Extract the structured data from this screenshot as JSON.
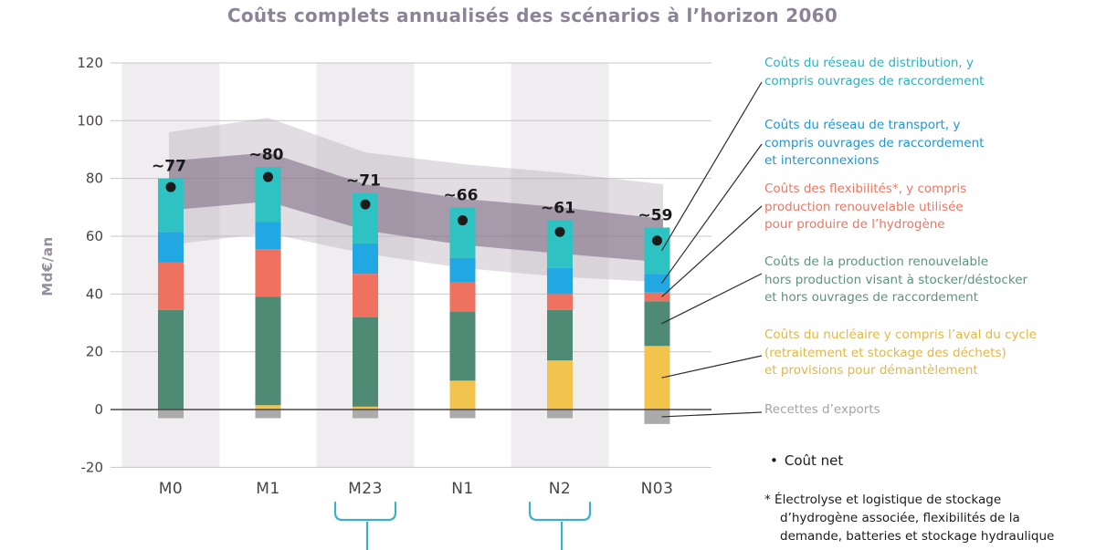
{
  "title": "Coûts complets annualisés des scénarios à l’horizon 2060",
  "chart_data": {
    "type": "bar",
    "stacked": true,
    "title": "Coûts complets annualisés des scénarios à l’horizon 2060",
    "ylabel": "Md€/an",
    "ylim": [
      -20,
      120
    ],
    "yticks": [
      120,
      100,
      80,
      60,
      40,
      20,
      0,
      -20
    ],
    "grid": true,
    "categories": [
      "M0",
      "M1",
      "M23",
      "N1",
      "N2",
      "N03"
    ],
    "highlighted_columns": [
      "M0",
      "M23",
      "N2"
    ],
    "bracketed_columns": [
      "M23",
      "N2"
    ],
    "series": [
      {
        "name": "Recettes d’exports",
        "color": "#ababab",
        "values": [
          -3,
          -3,
          -3,
          -3,
          -3,
          -5
        ]
      },
      {
        "name": "Coûts du nucléaire y compris l’aval du cycle (retraitement et stockage des déchets) et provisions pour démantèlement",
        "color": "#f2c44d",
        "values": [
          0,
          1.5,
          1,
          10,
          17,
          22
        ]
      },
      {
        "name": "Coûts de la production renouvelable hors production visant à stocker/déstocker et hors ouvrages de raccordement",
        "color": "#4e8a74",
        "values": [
          34.5,
          37.5,
          31,
          24,
          17.5,
          15.5
        ]
      },
      {
        "name": "Coûts des flexibilités*, y compris production renouvelable utilisée pour produire de l’hydrogène",
        "color": "#ef7260",
        "values": [
          16.5,
          16.5,
          15,
          10,
          5.5,
          3
        ]
      },
      {
        "name": "Coûts du réseau de transport, y compris ouvrages de raccordement et interconnexions",
        "color": "#21a8e3",
        "values": [
          10.5,
          9.5,
          10.5,
          8.5,
          9,
          6.5
        ]
      },
      {
        "name": "Coûts du réseau de distribution, y compris ouvrages de raccordement",
        "color": "#2ec2c2",
        "values": [
          18.5,
          19,
          17.5,
          17.5,
          16.5,
          16
        ]
      }
    ],
    "net": {
      "label": "Coût net",
      "values": [
        77,
        80.5,
        71,
        65.5,
        61.5,
        58.5
      ],
      "labels": [
        "~77",
        "~80",
        "~71",
        "~66",
        "~61",
        "~59"
      ]
    },
    "uncertainty_band": {
      "outer": {
        "top": [
          96,
          101,
          89,
          85,
          82,
          78
        ],
        "bottom": [
          57,
          61,
          54,
          49,
          46,
          44
        ],
        "color": "#b3a6b6"
      },
      "inner": {
        "top": [
          86,
          89,
          78,
          73,
          70,
          66
        ],
        "bottom": [
          69,
          72,
          62,
          57,
          54,
          51
        ],
        "color": "#816f85"
      }
    }
  },
  "legend": {
    "items": [
      {
        "text": "Coûts du réseau de distribution, y\ncompris ouvrages de raccordement",
        "color": "#2eb0bc"
      },
      {
        "text": "Coûts du réseau de transport, y\ncompris ouvrages de raccordement\net interconnexions",
        "color": "#2196d2"
      },
      {
        "text": "Coûts des flexibilités*, y compris\nproduction renouvelable utilisée\npour produire de l’hydrogène",
        "color": "#e97863"
      },
      {
        "text": "Coûts de la production renouvelable\nhors production visant à stocker/déstocker\net hors ouvrages de raccordement",
        "color": "#5d927e"
      },
      {
        "text": "Coûts du nucléaire y compris l’aval du cycle\n(retraitement et stockage des déchets)\net provisions pour démantèlement",
        "color": "#e2b743"
      },
      {
        "text": "Recettes d’exports",
        "color": "#a5a2a2"
      }
    ]
  },
  "net_legend": {
    "bullet": "•",
    "label": "Coût net"
  },
  "footnote": "* Électrolyse et logistique de stockage\nd’hydrogène associée, flexibilités de la\ndemande, batteries et stockage hydraulique"
}
